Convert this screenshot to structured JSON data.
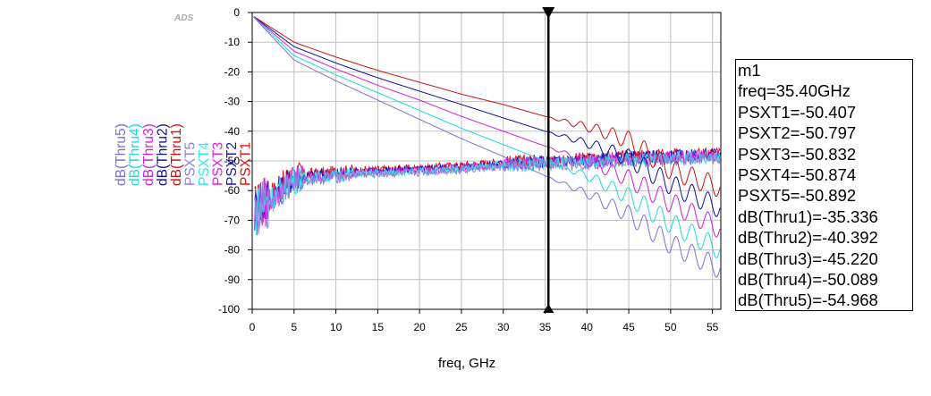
{
  "chart_data": {
    "type": "line",
    "watermark": "ADS",
    "xlabel": "freq, GHz",
    "ylabel": "",
    "xlim": [
      0,
      56
    ],
    "ylim": [
      -100,
      0
    ],
    "grid": true,
    "x_ticks": [
      "0",
      "5",
      "10",
      "15",
      "20",
      "25",
      "30",
      "35",
      "40",
      "45",
      "50",
      "55"
    ],
    "y_ticks": [
      "0",
      "-10",
      "-20",
      "-30",
      "-40",
      "-50",
      "-60",
      "-70",
      "-80",
      "-90",
      "-100"
    ],
    "legend_position": "left-vertical",
    "series": [
      {
        "name": "PSXT1",
        "color": "#e0100f",
        "kind": "xtalk",
        "offset": 0.0
      },
      {
        "name": "PSXT2",
        "color": "#1414c8",
        "kind": "xtalk",
        "offset": 0.4
      },
      {
        "name": "PSXT3",
        "color": "#e020e0",
        "kind": "xtalk",
        "offset": 0.8
      },
      {
        "name": "PSXT4",
        "color": "#30e8e8",
        "kind": "xtalk",
        "offset": 1.2
      },
      {
        "name": "PSXT5",
        "color": "#8a80e0",
        "kind": "xtalk",
        "offset": 1.6
      },
      {
        "name": "dB(Thru1)",
        "color": "#cc1010",
        "points": [
          [
            0,
            -1
          ],
          [
            5,
            -10
          ],
          [
            10,
            -15
          ],
          [
            15,
            -19.5
          ],
          [
            20,
            -23.5
          ],
          [
            25,
            -27.5
          ],
          [
            30,
            -31
          ],
          [
            35,
            -35
          ],
          [
            40,
            -38.5
          ],
          [
            45,
            -43
          ],
          [
            50,
            -53
          ],
          [
            56,
            -59
          ]
        ]
      },
      {
        "name": "dB(Thru2)",
        "color": "#101090",
        "points": [
          [
            0,
            -1
          ],
          [
            5,
            -11.5
          ],
          [
            10,
            -17
          ],
          [
            15,
            -22
          ],
          [
            20,
            -26.5
          ],
          [
            25,
            -31
          ],
          [
            30,
            -35.5
          ],
          [
            35,
            -40
          ],
          [
            40,
            -44
          ],
          [
            45,
            -49
          ],
          [
            50,
            -58
          ],
          [
            56,
            -66
          ]
        ]
      },
      {
        "name": "dB(Thru3)",
        "color": "#d020d0",
        "points": [
          [
            0,
            -1
          ],
          [
            5,
            -13
          ],
          [
            10,
            -19
          ],
          [
            15,
            -24.5
          ],
          [
            20,
            -29.5
          ],
          [
            25,
            -35
          ],
          [
            30,
            -40
          ],
          [
            35,
            -45
          ],
          [
            40,
            -50
          ],
          [
            45,
            -56
          ],
          [
            50,
            -64
          ],
          [
            56,
            -73
          ]
        ]
      },
      {
        "name": "dB(Thru4)",
        "color": "#20d8d8",
        "points": [
          [
            0,
            -1
          ],
          [
            5,
            -14.5
          ],
          [
            10,
            -21
          ],
          [
            15,
            -27
          ],
          [
            20,
            -33
          ],
          [
            25,
            -39
          ],
          [
            30,
            -44.5
          ],
          [
            35,
            -50
          ],
          [
            40,
            -55
          ],
          [
            45,
            -62
          ],
          [
            50,
            -71
          ],
          [
            56,
            -80
          ]
        ]
      },
      {
        "name": "dB(Thru5)",
        "color": "#7a70d8",
        "points": [
          [
            0,
            -1
          ],
          [
            5,
            -16
          ],
          [
            10,
            -23
          ],
          [
            15,
            -29.5
          ],
          [
            20,
            -36
          ],
          [
            25,
            -42.5
          ],
          [
            30,
            -48.5
          ],
          [
            35,
            -55
          ],
          [
            40,
            -61
          ],
          [
            45,
            -68
          ],
          [
            50,
            -78
          ],
          [
            56,
            -86.5
          ]
        ]
      }
    ],
    "legend_order": [
      "dB(Thru5)",
      "dB(Thru4)",
      "dB(Thru3)",
      "dB(Thru2)",
      "dB(Thru1)",
      "PSXT5",
      "PSXT4",
      "PSXT3",
      "PSXT2",
      "PSXT1"
    ],
    "marker": {
      "name": "m1",
      "freq_ghz": 35.4,
      "lines": [
        "m1",
        "freq=35.40GHz",
        "PSXT1=-50.407",
        "PSXT2=-50.797",
        "PSXT3=-50.832",
        "PSXT4=-50.874",
        "PSXT5=-50.892",
        "dB(Thru1)=-35.336",
        "dB(Thru2)=-40.392",
        "dB(Thru3)=-45.220",
        "dB(Thru4)=-50.089",
        "dB(Thru5)=-54.968"
      ]
    }
  }
}
